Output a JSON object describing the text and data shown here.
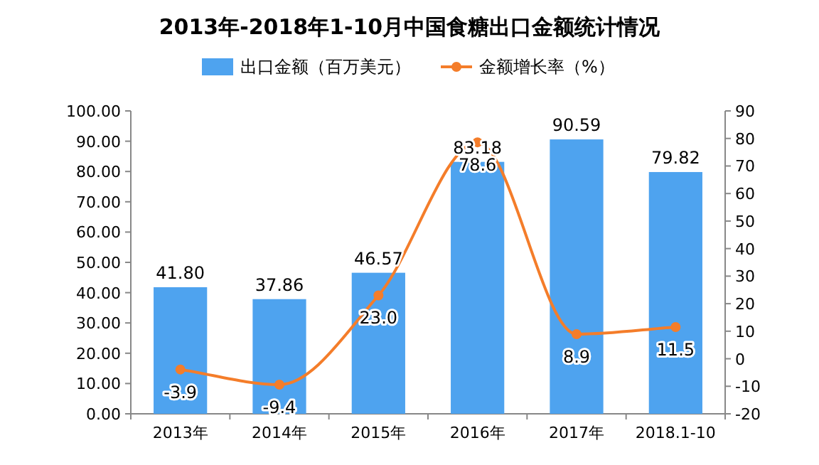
{
  "chart_data": {
    "type": "bar",
    "title": "2013年-2018年1-10月中国食糖出口金额统计情况",
    "categories": [
      "2013年",
      "2014年",
      "2015年",
      "2016年",
      "2017年",
      "2018.1-10"
    ],
    "series": [
      {
        "name": "出口金额（百万美元）",
        "color": "#4ea3ef",
        "values": [
          41.8,
          37.86,
          46.57,
          83.18,
          90.59,
          79.82
        ],
        "value_labels": [
          "41.80",
          "37.86",
          "46.57",
          "83.18",
          "90.59",
          "79.82"
        ]
      },
      {
        "name": "金额增长率（%）",
        "type": "line",
        "axis": "y2",
        "color": "#f47d2a",
        "marker": "circle",
        "values": [
          -3.9,
          -9.4,
          23.0,
          78.6,
          8.9,
          11.5
        ],
        "value_labels": [
          "-3.9",
          "-9.4",
          "23.0",
          "78.6",
          "8.9",
          "11.5"
        ]
      }
    ],
    "ylim": [
      0,
      100
    ],
    "yticks": [
      {
        "value": 0,
        "label": "0.00"
      },
      {
        "value": 10,
        "label": "10.00"
      },
      {
        "value": 20,
        "label": "20.00"
      },
      {
        "value": 30,
        "label": "30.00"
      },
      {
        "value": 40,
        "label": "40.00"
      },
      {
        "value": 50,
        "label": "50.00"
      },
      {
        "value": 60,
        "label": "60.00"
      },
      {
        "value": 70,
        "label": "70.00"
      },
      {
        "value": 80,
        "label": "80.00"
      },
      {
        "value": 90,
        "label": "90.00"
      },
      {
        "value": 100,
        "label": "100.00"
      }
    ],
    "y2lim": [
      -20,
      90
    ],
    "y2ticks": [
      -20,
      -10,
      0,
      10,
      20,
      30,
      40,
      50,
      60,
      70,
      80,
      90
    ],
    "legend": "top",
    "grid": false
  }
}
